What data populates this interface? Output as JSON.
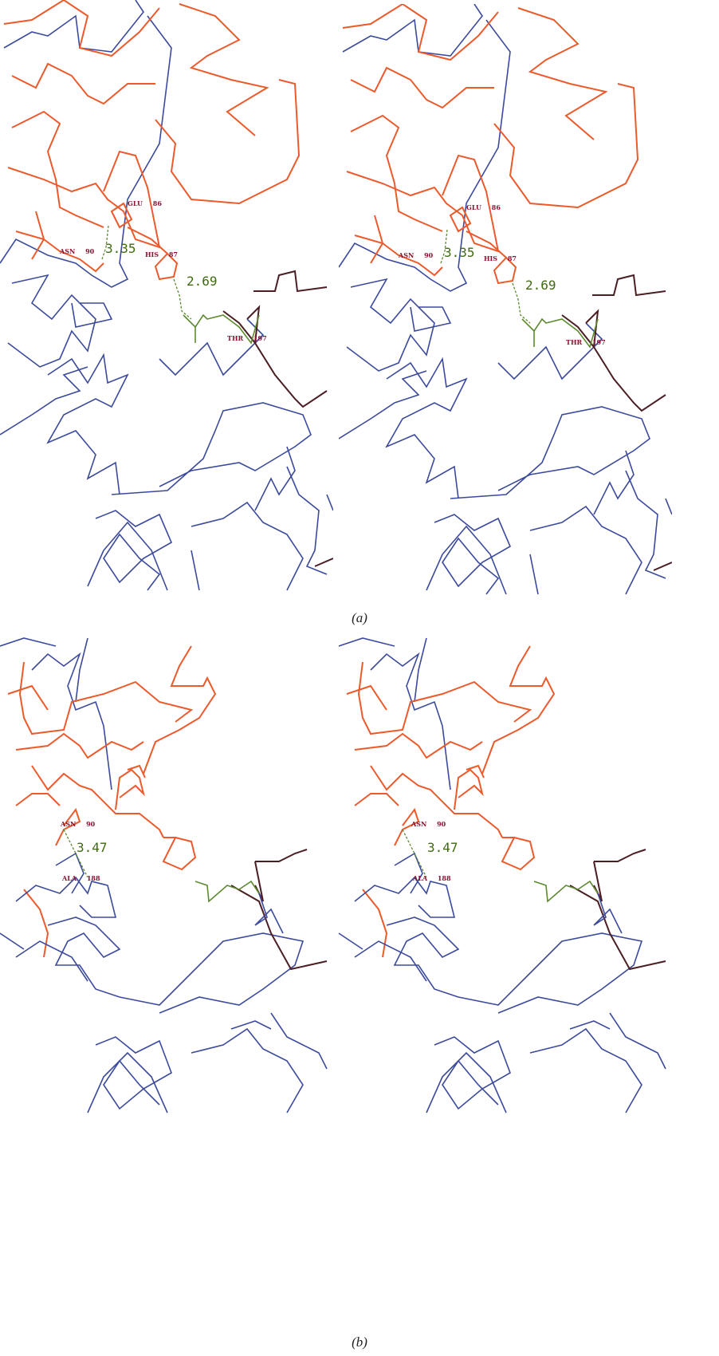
{
  "figure": {
    "panels": [
      {
        "label": "(a)",
        "residues": [
          "GLU 86",
          "ASN 90",
          "HIS 87",
          "THR 197"
        ],
        "distances": [
          "3.35",
          "2.69"
        ]
      },
      {
        "label": "(b)",
        "residues": [
          "ASN 90",
          "ALA 188"
        ],
        "distances": [
          "3.47"
        ]
      }
    ]
  }
}
